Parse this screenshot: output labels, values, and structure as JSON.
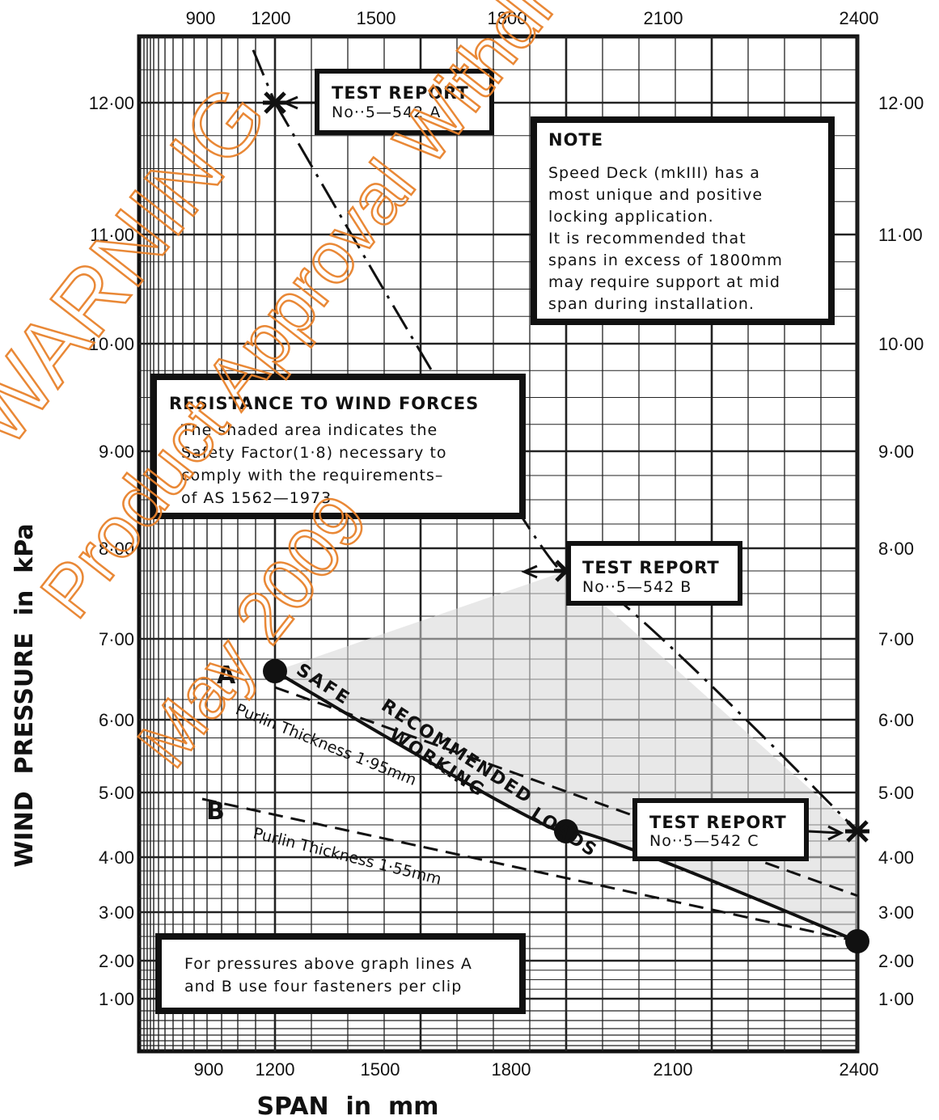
{
  "chart_data": {
    "type": "line",
    "x_ticks_top": [
      "900",
      "1200",
      "1500",
      "1800",
      "2100",
      "2400"
    ],
    "x_ticks_bottom": [
      "900",
      "1200",
      "1500",
      "1800",
      "2100",
      "2400"
    ],
    "y_ticks_left": [
      "12·00",
      "11·00",
      "10·00",
      "9·00",
      "8·00",
      "7·00",
      "6·00",
      "5·00",
      "4·00",
      "3·00",
      "2·00",
      "1·00"
    ],
    "y_ticks_right": [
      "12·00",
      "11·00",
      "10·00",
      "9·00",
      "8·00",
      "7·00",
      "6·00",
      "5·00",
      "4·00",
      "3·00",
      "2·00",
      "1·00"
    ],
    "xlabel": "SPAN  in  mm",
    "ylabel": "WIND  PRESSURE  in  kPa",
    "series": [
      {
        "name": "TEST REPORT",
        "style": "dash-dot",
        "points": [
          [
            1200,
            12.0
          ],
          [
            1800,
            7.75
          ],
          [
            2400,
            4.4
          ]
        ]
      },
      {
        "name": "SAFE RECOMMENDED WORKING LOADS",
        "style": "solid",
        "points": [
          [
            1200,
            6.6
          ],
          [
            1800,
            4.4
          ],
          [
            2400,
            2.4
          ]
        ]
      },
      {
        "name": "A",
        "style": "dashed",
        "points": [
          [
            1200,
            6.4
          ],
          [
            2400,
            3.3
          ]
        ]
      },
      {
        "name": "B",
        "style": "dashed",
        "points": [
          [
            1050,
            4.9
          ],
          [
            2400,
            2.4
          ]
        ]
      }
    ],
    "reference_lines": [
      {
        "label": "Purlin Thickness 1·95mm"
      },
      {
        "label": "Purlin Thickness 1·55mm"
      }
    ],
    "annotations": {
      "test_report_a": {
        "title": "TEST REPORT",
        "number": "No··5—542 A"
      },
      "test_report_b": {
        "title": "TEST REPORT",
        "number": "No··5—542 B"
      },
      "test_report_c": {
        "title": "TEST REPORT",
        "number": "No··5—542 C"
      },
      "note": {
        "title": "NOTE",
        "lines": [
          "Speed Deck (mkIII) has a",
          "most unique and positive",
          "locking application.",
          "It is recommended that",
          "spans in excess of 1800mm",
          "may require support at mid",
          "span during installation."
        ]
      },
      "resistance": {
        "title": "RESISTANCE TO WIND FORCES",
        "lines": [
          "The shaded area indicates the",
          "Safety Factor(1·8) necessary to",
          "comply with the requirements–",
          "of AS 1562—1973"
        ]
      },
      "fasteners": {
        "lines": [
          "For pressures above graph lines A",
          "and B use four fasteners per clip"
        ]
      },
      "safe_label": "SAFE",
      "recommended_label": "RECOMMENDED",
      "working_label": "WORKING",
      "loads_label": "LOADS",
      "label_a": "A",
      "label_b": "B",
      "purlin_a": "Purlin Thickness 1·95mm",
      "purlin_b": "Purlin Thickness 1·55mm"
    },
    "grid": true
  },
  "watermark": {
    "lines": [
      "WARNING",
      "Product Approval Withdrawn",
      "May 2009"
    ],
    "color": "#e8822c"
  }
}
